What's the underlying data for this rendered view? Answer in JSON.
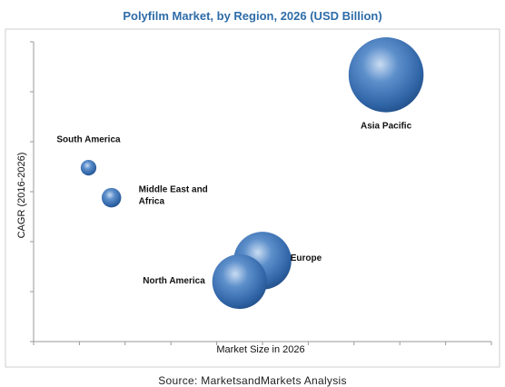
{
  "chart_data": {
    "type": "bubble",
    "title": "Polyfilm Market, by Region, 2026 (USD Billion)",
    "xlabel": "Market Size in 2026",
    "ylabel": "CAGR (2016-2026)",
    "xlim": [
      0,
      10
    ],
    "ylim": [
      0,
      10
    ],
    "series": [
      {
        "name": "South America",
        "label_lines": [
          "South America"
        ],
        "x": 1.2,
        "y": 5.8,
        "size": 1.0
      },
      {
        "name": "Middle East and Africa",
        "label_lines": [
          "Middle East and",
          "Africa"
        ],
        "x": 1.7,
        "y": 4.8,
        "size": 1.25
      },
      {
        "name": "North America",
        "label_lines": [
          "North America"
        ],
        "x": 4.5,
        "y": 2.0,
        "size": 3.5
      },
      {
        "name": "Europe",
        "label_lines": [
          "Europe"
        ],
        "x": 5.0,
        "y": 2.7,
        "size": 3.7
      },
      {
        "name": "Asia Pacific",
        "label_lines": [
          "Asia Pacific"
        ],
        "x": 7.7,
        "y": 8.9,
        "size": 4.8
      }
    ],
    "grid": false,
    "legend": "none",
    "bubble_color": "#3a6fb0"
  },
  "source": "Source: MarketsandMarkets Analysis"
}
